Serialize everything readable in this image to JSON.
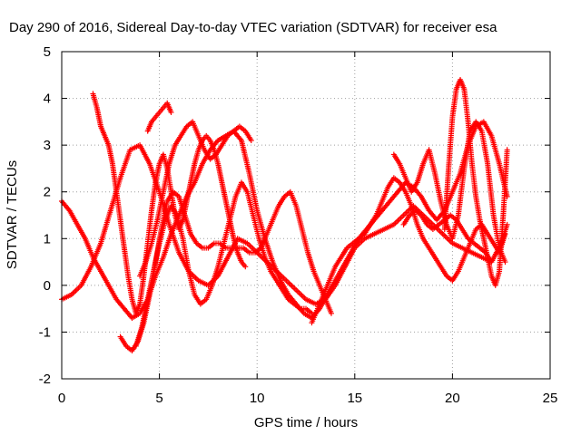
{
  "chart_data": {
    "type": "scatter",
    "title": "Day 290 of 2016, Sidereal Day-to-day VTEC variation (SDTVAR) for receiver esa",
    "xlabel": "GPS time / hours",
    "ylabel": "SDTVAR / TECUs",
    "xlim": [
      0,
      25
    ],
    "ylim": [
      -2,
      5
    ],
    "xticks": [
      "0",
      "5",
      "10",
      "15",
      "20",
      "25"
    ],
    "yticks": [
      "-2",
      "-1",
      "0",
      "1",
      "2",
      "3",
      "4",
      "5"
    ],
    "grid": true,
    "marker": "plus",
    "marker_color": "#ff0000",
    "series": [
      {
        "x": [
          0.0,
          0.4,
          0.8,
          1.2,
          1.6,
          2.0,
          2.4,
          2.8,
          3.2,
          3.6,
          4.0,
          4.4,
          4.8,
          5.2,
          5.6,
          6.0,
          6.4,
          6.8,
          7.2,
          7.6,
          8.0,
          8.4,
          8.8,
          9.2,
          9.6,
          10.0,
          10.4,
          10.8,
          11.2,
          11.6,
          12.0,
          12.4,
          12.8,
          13.2,
          13.6,
          14.0,
          14.4,
          14.8,
          15.2,
          15.6,
          16.0,
          16.4,
          16.8,
          17.2,
          17.6,
          18.0,
          18.4,
          18.8,
          19.2,
          19.6,
          20.0,
          20.4,
          20.8,
          21.2,
          21.6,
          22.0,
          22.4,
          22.8
        ],
        "y": [
          1.8,
          1.6,
          1.3,
          1.0,
          0.6,
          0.3,
          0.0,
          -0.3,
          -0.5,
          -0.7,
          -0.6,
          -0.3,
          0.2,
          0.6,
          1.1,
          1.5,
          1.9,
          2.2,
          2.6,
          2.9,
          3.1,
          3.2,
          3.3,
          3.1,
          2.4,
          1.6,
          1.0,
          0.5,
          0.1,
          -0.2,
          -0.4,
          -0.6,
          -0.7,
          -0.5,
          -0.2,
          0.1,
          0.4,
          0.7,
          1.0,
          1.2,
          1.4,
          1.6,
          1.8,
          2.0,
          2.2,
          2.1,
          1.9,
          1.6,
          1.4,
          1.6,
          2.0,
          2.4,
          3.0,
          3.4,
          3.5,
          3.2,
          2.6,
          1.9
        ]
      },
      {
        "x": [
          1.6,
          1.8,
          2.0,
          2.2,
          2.4,
          2.6,
          2.8,
          3.0,
          3.2,
          3.4,
          3.6,
          3.8,
          4.0,
          4.2,
          4.4,
          4.6,
          4.8,
          5.0,
          5.2,
          5.4,
          5.6,
          5.8,
          6.0,
          6.2,
          6.4,
          6.6,
          6.8,
          7.0,
          7.2,
          7.4,
          7.6,
          7.8,
          8.0,
          8.2,
          8.4,
          8.6,
          8.8,
          9.0,
          9.2,
          9.4
        ],
        "y": [
          4.1,
          3.8,
          3.4,
          3.2,
          3.0,
          2.6,
          2.0,
          1.4,
          0.8,
          0.2,
          -0.3,
          -0.6,
          -0.4,
          0.2,
          0.9,
          1.6,
          2.2,
          2.6,
          2.8,
          2.5,
          2.0,
          1.5,
          1.2,
          1.4,
          1.8,
          2.2,
          2.6,
          2.9,
          3.1,
          3.2,
          3.1,
          2.9,
          2.6,
          2.2,
          1.8,
          1.4,
          1.0,
          0.7,
          0.5,
          0.4
        ]
      },
      {
        "x": [
          0.0,
          0.5,
          1.0,
          1.5,
          2.0,
          2.5,
          3.0,
          3.5,
          4.0,
          4.5,
          5.0,
          5.5,
          6.0,
          6.5,
          7.0,
          7.5,
          8.0,
          8.5,
          9.0,
          9.5,
          10.0,
          10.5,
          11.0,
          11.5,
          12.0,
          12.5,
          13.0,
          13.5,
          14.0,
          14.5,
          15.0,
          15.5,
          16.0,
          16.5,
          17.0,
          17.5,
          18.0,
          18.5,
          19.0,
          19.5,
          20.0,
          20.5,
          21.0,
          21.5,
          22.0,
          22.5,
          22.8
        ],
        "y": [
          -0.3,
          -0.2,
          0.0,
          0.4,
          0.9,
          1.6,
          2.3,
          2.9,
          3.0,
          2.6,
          2.0,
          1.3,
          0.7,
          0.3,
          0.1,
          0.0,
          0.2,
          0.6,
          1.0,
          0.9,
          0.7,
          0.5,
          0.3,
          0.1,
          -0.1,
          -0.3,
          -0.4,
          -0.3,
          0.0,
          0.4,
          0.8,
          1.0,
          1.1,
          1.2,
          1.3,
          1.5,
          1.7,
          1.5,
          1.3,
          1.1,
          0.9,
          0.8,
          0.7,
          0.6,
          0.5,
          0.9,
          1.3
        ]
      },
      {
        "x": [
          3.0,
          3.3,
          3.6,
          3.9,
          4.2,
          4.5,
          4.8,
          5.1,
          5.4,
          5.7,
          6.0,
          6.3,
          6.6,
          6.9,
          7.2,
          7.5,
          7.8,
          8.1,
          8.4,
          8.7,
          9.0,
          9.3,
          9.6,
          9.9,
          10.2,
          10.5,
          10.8,
          11.1,
          11.4,
          11.7,
          12.0,
          12.3,
          12.6,
          12.9,
          13.2,
          13.5,
          13.8
        ],
        "y": [
          -1.1,
          -1.3,
          -1.4,
          -1.2,
          -0.8,
          -0.2,
          0.5,
          1.2,
          1.8,
          2.0,
          1.9,
          1.5,
          1.1,
          0.9,
          0.8,
          0.8,
          0.9,
          0.9,
          0.8,
          0.8,
          0.8,
          0.8,
          0.7,
          0.7,
          0.8,
          1.1,
          1.4,
          1.7,
          1.9,
          2.0,
          1.7,
          1.2,
          0.7,
          0.3,
          0.0,
          -0.3,
          -0.6
        ]
      },
      {
        "x": [
          3.8,
          4.1,
          4.4,
          4.7,
          5.0,
          5.3,
          5.6,
          5.9,
          6.2,
          6.5,
          6.8,
          7.1,
          7.4,
          7.7,
          8.0,
          8.3,
          8.6,
          8.9,
          9.2,
          9.5,
          9.8,
          10.1,
          10.4,
          10.7,
          11.0,
          11.3,
          11.6,
          11.9,
          12.2,
          12.5,
          12.8
        ],
        "y": [
          -1.3,
          -0.9,
          -0.3,
          0.3,
          0.9,
          1.4,
          1.7,
          1.5,
          1.0,
          0.3,
          -0.2,
          -0.4,
          -0.3,
          0.0,
          0.4,
          0.9,
          1.4,
          1.9,
          2.2,
          2.0,
          1.5,
          1.0,
          0.6,
          0.3,
          0.1,
          -0.1,
          -0.3,
          -0.4,
          -0.5,
          -0.5,
          -0.6
        ]
      },
      {
        "x": [
          4.4,
          4.6,
          4.8,
          5.0,
          5.2,
          5.4,
          5.6
        ],
        "y": [
          3.3,
          3.5,
          3.6,
          3.7,
          3.8,
          3.9,
          3.7
        ]
      },
      {
        "x": [
          4.0,
          4.3,
          4.6,
          4.9,
          5.2,
          5.5,
          5.8,
          6.1,
          6.4,
          6.7,
          7.0,
          7.3,
          7.6,
          7.9,
          8.2,
          8.5,
          8.8,
          9.1,
          9.4,
          9.7
        ],
        "y": [
          0.2,
          0.5,
          0.9,
          1.4,
          2.0,
          2.6,
          3.0,
          3.2,
          3.4,
          3.5,
          3.2,
          2.9,
          2.7,
          2.8,
          3.0,
          3.2,
          3.3,
          3.4,
          3.3,
          3.1
        ]
      },
      {
        "x": [
          12.8,
          13.1,
          13.4,
          13.7,
          14.0,
          14.3,
          14.6,
          14.9,
          15.2,
          15.5,
          15.8,
          16.1,
          16.4,
          16.7,
          17.0,
          17.3,
          17.6,
          17.9,
          18.2,
          18.5,
          18.8,
          19.1,
          19.4,
          19.7,
          20.0,
          20.3,
          20.6,
          20.9,
          21.2,
          21.5,
          21.8,
          22.1,
          22.4,
          22.7
        ],
        "y": [
          -0.8,
          -0.5,
          -0.2,
          0.1,
          0.4,
          0.6,
          0.8,
          0.9,
          1.0,
          1.1,
          1.3,
          1.5,
          1.8,
          2.1,
          2.3,
          2.2,
          2.0,
          1.7,
          1.3,
          1.0,
          0.8,
          0.6,
          0.4,
          0.2,
          0.1,
          0.3,
          0.6,
          0.9,
          1.2,
          1.3,
          1.1,
          0.9,
          0.7,
          1.1
        ]
      },
      {
        "x": [
          17.0,
          17.3,
          17.6,
          17.9,
          18.2,
          18.5,
          18.8,
          19.1,
          19.4,
          19.7,
          20.0,
          20.3,
          20.6,
          20.9,
          21.2,
          21.5,
          21.8,
          22.1,
          22.4,
          22.7
        ],
        "y": [
          2.8,
          2.6,
          2.3,
          2.0,
          2.2,
          2.6,
          2.9,
          2.4,
          1.8,
          1.3,
          1.0,
          1.5,
          2.5,
          3.3,
          3.5,
          3.3,
          2.6,
          1.5,
          0.8,
          0.5
        ]
      },
      {
        "x": [
          19.6,
          19.8,
          20.0,
          20.2,
          20.4,
          20.6,
          20.8,
          21.0,
          21.2,
          21.4,
          21.6,
          21.8,
          22.0,
          22.2,
          22.4,
          22.6,
          22.8
        ],
        "y": [
          1.2,
          2.5,
          3.6,
          4.2,
          4.4,
          4.2,
          3.5,
          2.6,
          1.9,
          1.4,
          1.0,
          0.6,
          0.2,
          0.0,
          0.3,
          1.5,
          2.9
        ]
      },
      {
        "x": [
          17.5,
          17.8,
          18.1,
          18.4,
          18.7,
          19.0,
          19.3,
          19.6,
          19.9,
          20.2,
          20.5,
          20.8,
          21.1,
          21.4,
          21.7,
          22.0
        ],
        "y": [
          1.3,
          1.5,
          1.6,
          1.5,
          1.3,
          1.2,
          1.3,
          1.4,
          1.5,
          1.4,
          1.2,
          1.0,
          0.9,
          0.8,
          0.7,
          0.5
        ]
      }
    ]
  }
}
